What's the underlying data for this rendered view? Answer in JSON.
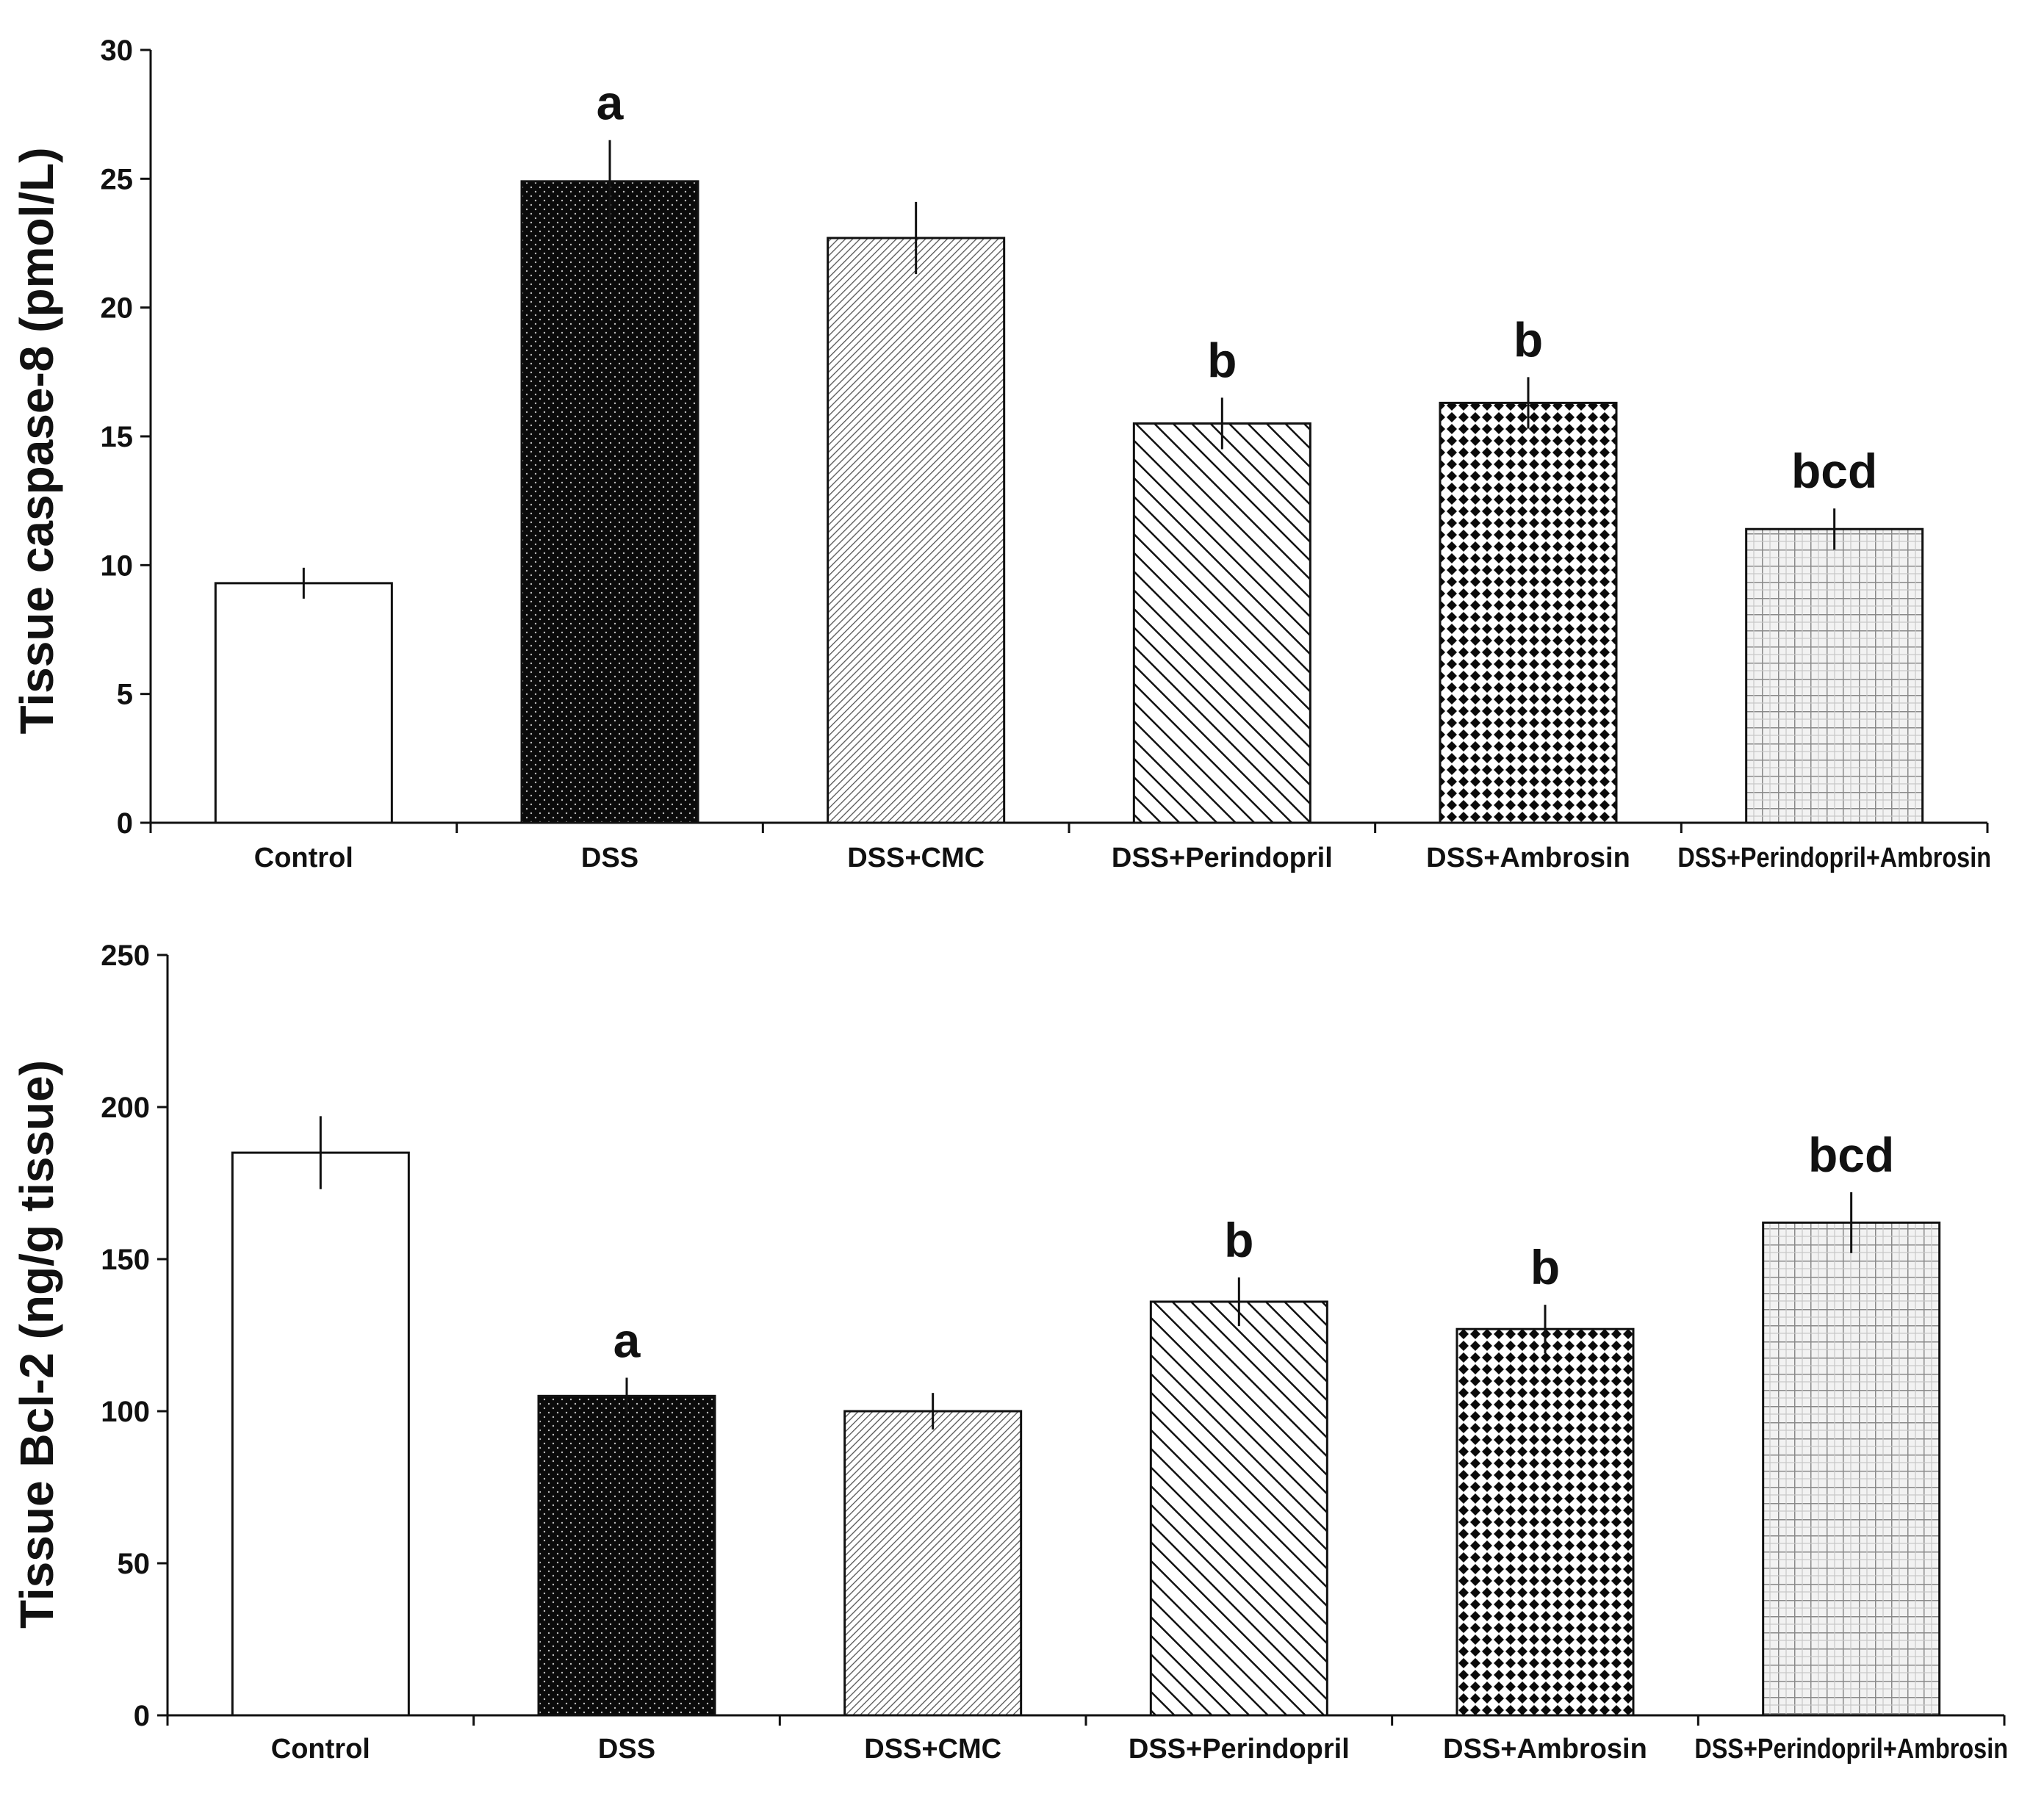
{
  "chart_data": [
    {
      "type": "bar",
      "title": "",
      "xlabel": "",
      "ylabel": "Tissue caspase-8  (pmol/L)",
      "ylim": [
        0,
        30
      ],
      "yticks": [
        0,
        5,
        10,
        15,
        20,
        25,
        30
      ],
      "categories": [
        "Control",
        "DSS",
        "DSS+CMC",
        "DSS+Perindopril",
        "DSS+Ambrosin",
        "DSS+Perindopril+Ambrosin"
      ],
      "values": [
        9.3,
        24.9,
        22.7,
        15.5,
        16.3,
        11.4
      ],
      "errors": [
        0.6,
        1.6,
        1.4,
        1.0,
        1.0,
        0.8
      ],
      "annotations": [
        "",
        "a",
        "",
        "b",
        "b",
        "bcd"
      ],
      "patterns": [
        "white",
        "dark-dots",
        "fine-diagonal",
        "diagonal",
        "diamond-grid",
        "light-grid"
      ]
    },
    {
      "type": "bar",
      "title": "",
      "xlabel": "",
      "ylabel": "Tissue Bcl-2  (ng/g tissue)",
      "ylim": [
        0,
        250
      ],
      "yticks": [
        0,
        50,
        100,
        150,
        200,
        250
      ],
      "categories": [
        "Control",
        "DSS",
        "DSS+CMC",
        "DSS+Perindopril",
        "DSS+Ambrosin",
        "DSS+Perindopril+Ambrosin"
      ],
      "values": [
        185,
        105,
        100,
        136,
        127,
        162
      ],
      "errors": [
        12,
        6,
        6,
        8,
        8,
        10
      ],
      "annotations": [
        "",
        "a",
        "",
        "b",
        "b",
        "bcd"
      ],
      "patterns": [
        "white",
        "dark-dots",
        "fine-diagonal",
        "diagonal",
        "diamond-grid",
        "light-grid"
      ]
    }
  ]
}
